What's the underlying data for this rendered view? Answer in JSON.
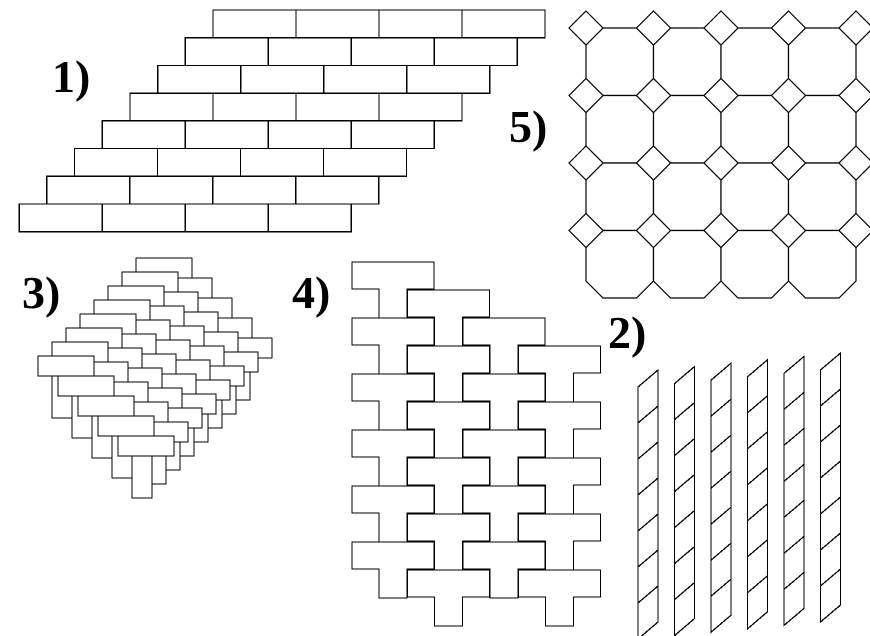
{
  "panels": [
    {
      "id": "running-bond",
      "label": "1)"
    },
    {
      "id": "slanted-parallelogram",
      "label": "2)"
    },
    {
      "id": "herringbone",
      "label": "3)"
    },
    {
      "id": "t-tiles",
      "label": "4)"
    },
    {
      "id": "octagon-square",
      "label": "5)"
    }
  ],
  "colors": {
    "stroke": "#000000",
    "fill": "#ffffff",
    "background": "#ffffff"
  }
}
